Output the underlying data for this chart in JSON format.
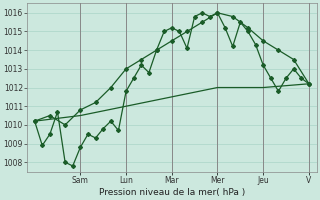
{
  "xlabel": "Pression niveau de la mer( hPa )",
  "bg_color": "#cce8de",
  "grid_color": "#aad4c8",
  "line_color": "#1a5c28",
  "ylim": [
    1007.5,
    1016.5
  ],
  "yticks": [
    1008,
    1009,
    1010,
    1011,
    1012,
    1013,
    1014,
    1015,
    1016
  ],
  "day_labels": [
    "Sam",
    "Lun",
    "Mar",
    "Mer",
    "Jeu",
    "V"
  ],
  "day_positions": [
    12,
    24,
    36,
    48,
    60,
    72
  ],
  "series1_x": [
    0,
    2,
    4,
    6,
    8,
    10,
    12,
    14,
    16,
    18,
    20,
    22,
    24,
    26,
    28,
    30,
    32,
    34,
    36,
    38,
    40,
    42,
    44,
    46,
    48,
    50,
    52,
    54,
    56,
    58,
    60,
    62,
    64,
    66,
    68,
    70,
    72
  ],
  "series1_y": [
    1010.2,
    1008.9,
    1009.5,
    1010.7,
    1008.0,
    1007.8,
    1008.8,
    1009.5,
    1009.3,
    1009.8,
    1010.2,
    1009.7,
    1011.8,
    1012.5,
    1013.2,
    1012.8,
    1014.0,
    1015.0,
    1015.2,
    1015.0,
    1014.1,
    1015.8,
    1016.0,
    1015.8,
    1016.0,
    1015.2,
    1014.2,
    1015.5,
    1015.0,
    1014.3,
    1013.2,
    1012.5,
    1011.8,
    1012.5,
    1013.0,
    1012.5,
    1012.2
  ],
  "series2_x": [
    0,
    4,
    8,
    12,
    16,
    20,
    24,
    28,
    32,
    36,
    40,
    44,
    48,
    52,
    56,
    60,
    64,
    68,
    72
  ],
  "series2_y": [
    1010.2,
    1010.5,
    1010.0,
    1010.8,
    1011.2,
    1012.0,
    1013.0,
    1013.5,
    1014.0,
    1014.5,
    1015.0,
    1015.5,
    1016.0,
    1015.8,
    1015.2,
    1014.5,
    1014.0,
    1013.5,
    1012.2
  ],
  "series3_x": [
    0,
    12,
    24,
    36,
    48,
    60,
    72
  ],
  "series3_y": [
    1010.2,
    1010.5,
    1011.0,
    1011.5,
    1012.0,
    1012.0,
    1012.2
  ]
}
